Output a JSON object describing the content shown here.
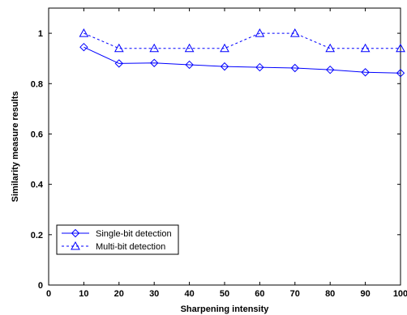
{
  "chart_data": {
    "type": "line",
    "xlabel": "Sharpening intensity",
    "ylabel": "Similarity measure results",
    "xlim": [
      0,
      100
    ],
    "ylim": [
      0,
      1.1
    ],
    "x_ticks": [
      0,
      10,
      20,
      30,
      40,
      50,
      60,
      70,
      80,
      90,
      100
    ],
    "y_ticks": [
      0,
      0.2,
      0.4,
      0.6,
      0.8,
      1
    ],
    "y_tick_labels": [
      "0",
      "0.2",
      "0.4",
      "0.6",
      "0.8",
      "1"
    ],
    "grid": false,
    "legend_position": "lower-left",
    "x": [
      10,
      20,
      30,
      40,
      50,
      60,
      70,
      80,
      90,
      100
    ],
    "series": [
      {
        "name": "Single-bit detection",
        "values": [
          0.945,
          0.88,
          0.882,
          0.875,
          0.868,
          0.865,
          0.862,
          0.855,
          0.845,
          0.842
        ],
        "color": "#0000ff",
        "line_style": "solid",
        "marker": "diamond"
      },
      {
        "name": "Multi-bit detection",
        "values": [
          1.0,
          0.94,
          0.94,
          0.94,
          0.94,
          1.0,
          1.0,
          0.94,
          0.94,
          0.94
        ],
        "color": "#0000ff",
        "line_style": "dashed",
        "marker": "triangle"
      }
    ]
  }
}
